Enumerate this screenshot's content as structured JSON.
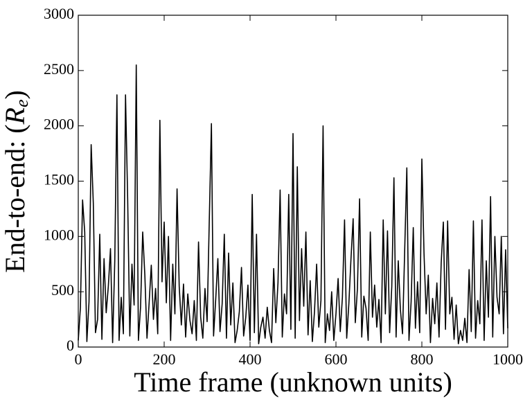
{
  "chart_data": {
    "type": "line",
    "xlabel": "Time frame (unknown units)",
    "ylabel": {
      "text": "End-to-end: (",
      "symbol": "R",
      "subscript": "e",
      "close": ")"
    },
    "xlim": [
      0,
      1000
    ],
    "xticks": [
      0,
      200,
      400,
      600,
      800,
      1000
    ],
    "ylim": [
      0,
      3000
    ],
    "yticks": [
      0,
      500,
      1000,
      1500,
      2000,
      2500,
      3000
    ],
    "series": [
      {
        "color": "#000000",
        "x": [
          0,
          5,
          10,
          15,
          20,
          25,
          30,
          35,
          40,
          45,
          50,
          55,
          60,
          65,
          70,
          75,
          80,
          85,
          90,
          95,
          100,
          105,
          110,
          115,
          120,
          125,
          130,
          135,
          140,
          145,
          150,
          155,
          160,
          165,
          170,
          175,
          180,
          185,
          190,
          195,
          200,
          205,
          210,
          215,
          220,
          225,
          230,
          235,
          240,
          245,
          250,
          255,
          260,
          265,
          270,
          275,
          280,
          285,
          290,
          295,
          300,
          305,
          310,
          315,
          320,
          325,
          330,
          335,
          340,
          345,
          350,
          355,
          360,
          365,
          370,
          375,
          380,
          385,
          390,
          395,
          400,
          405,
          410,
          415,
          420,
          425,
          430,
          435,
          440,
          445,
          450,
          455,
          460,
          465,
          470,
          475,
          480,
          485,
          490,
          495,
          500,
          505,
          510,
          515,
          520,
          525,
          530,
          535,
          540,
          545,
          550,
          555,
          560,
          565,
          570,
          575,
          580,
          585,
          590,
          595,
          600,
          605,
          610,
          615,
          620,
          625,
          630,
          635,
          640,
          645,
          650,
          655,
          660,
          665,
          670,
          675,
          680,
          685,
          690,
          695,
          700,
          705,
          710,
          715,
          720,
          725,
          730,
          735,
          740,
          745,
          750,
          755,
          760,
          765,
          770,
          775,
          780,
          785,
          790,
          795,
          800,
          805,
          810,
          815,
          820,
          825,
          830,
          835,
          840,
          845,
          850,
          855,
          860,
          865,
          870,
          875,
          880,
          885,
          890,
          895,
          900,
          905,
          910,
          915,
          920,
          925,
          930,
          935,
          940,
          945,
          950,
          955,
          960,
          965,
          970,
          975,
          980,
          985,
          990,
          995,
          1000
        ],
        "values": [
          60,
          360,
          1330,
          1040,
          50,
          410,
          1830,
          1300,
          130,
          250,
          1020,
          70,
          800,
          310,
          550,
          890,
          40,
          780,
          2280,
          60,
          450,
          120,
          2280,
          1340,
          100,
          750,
          380,
          2550,
          60,
          360,
          1040,
          650,
          80,
          400,
          740,
          250,
          530,
          120,
          2050,
          590,
          1130,
          400,
          1000,
          60,
          750,
          300,
          1430,
          550,
          200,
          570,
          90,
          480,
          240,
          120,
          420,
          60,
          950,
          270,
          80,
          530,
          230,
          1140,
          2020,
          100,
          430,
          800,
          140,
          390,
          1020,
          80,
          850,
          200,
          580,
          40,
          150,
          320,
          720,
          100,
          270,
          560,
          60,
          1380,
          130,
          1020,
          30,
          180,
          270,
          80,
          360,
          150,
          40,
          710,
          220,
          580,
          1420,
          90,
          480,
          300,
          1380,
          160,
          1930,
          80,
          1630,
          240,
          890,
          370,
          1040,
          110,
          600,
          50,
          320,
          750,
          180,
          420,
          2000,
          40,
          300,
          150,
          500,
          60,
          300,
          620,
          140,
          450,
          1150,
          80,
          390,
          800,
          1160,
          220,
          530,
          1340,
          90,
          460,
          350,
          60,
          1040,
          270,
          560,
          180,
          430,
          40,
          1150,
          300,
          1050,
          130,
          550,
          1530,
          90,
          780,
          340,
          120,
          870,
          1620,
          60,
          410,
          1080,
          170,
          590,
          130,
          1700,
          850,
          300,
          650,
          40,
          440,
          210,
          580,
          90,
          760,
          1130,
          160,
          1140,
          300,
          450,
          70,
          380,
          30,
          150,
          60,
          260,
          40,
          700,
          140,
          1140,
          80,
          420,
          210,
          1150,
          60,
          780,
          270,
          1360,
          90,
          1000,
          450,
          300,
          1000,
          120,
          880,
          170
        ]
      }
    ]
  }
}
